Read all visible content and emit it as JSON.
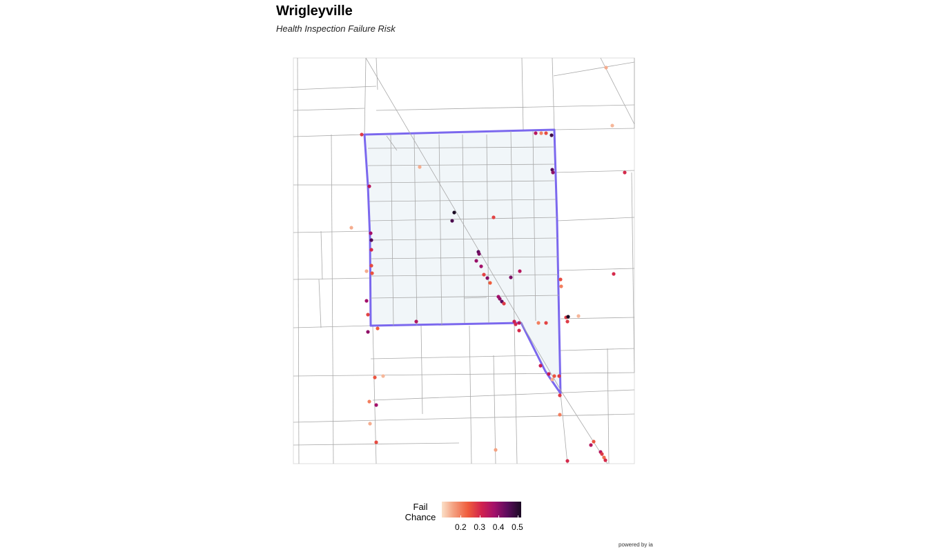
{
  "title": "Wrigleyville",
  "subtitle": "Health Inspection Failure Risk",
  "legend": {
    "title_line1": "Fail",
    "title_line2": "Chance",
    "ticks": [
      "0.2",
      "0.3",
      "0.4",
      "0.5"
    ],
    "tick_values": [
      0.2,
      0.3,
      0.4,
      0.5
    ],
    "value_range": [
      0.1,
      0.52
    ]
  },
  "credit": "powered by ia",
  "colors": {
    "boundary": "#7b68ee",
    "boundary_fill": "#eef4f8",
    "roads": "#a8a8a8",
    "scale_low": "#fbe0c8",
    "scale_high": "#1a0a23"
  },
  "fail_chance_points": [
    0.28,
    0.35,
    0.38,
    0.46,
    0.3,
    0.26,
    0.15,
    0.25,
    0.38,
    0.27,
    0.24,
    0.4,
    0.52,
    0.47,
    0.27,
    0.15,
    0.45,
    0.42,
    0.39,
    0.38,
    0.27,
    0.41,
    0.24,
    0.42,
    0.35,
    0.38,
    0.4,
    0.45,
    0.28,
    0.36,
    0.32,
    0.3,
    0.3,
    0.35,
    0.2,
    0.27,
    0.28,
    0.52,
    0.26,
    0.2,
    0.3,
    0.3,
    0.14,
    0.15,
    0.35,
    0.2,
    0.26,
    0.48,
    0.46,
    0.4,
    0.32,
    0.33,
    0.25,
    0.28,
    0.15,
    0.28,
    0.2,
    0.25,
    0.14,
    0.2,
    0.38,
    0.15,
    0.26,
    0.16,
    0.35,
    0.25,
    0.35,
    0.28,
    0.22,
    0.3,
    0.3,
    0.15,
    0.14,
    0.28
  ]
}
